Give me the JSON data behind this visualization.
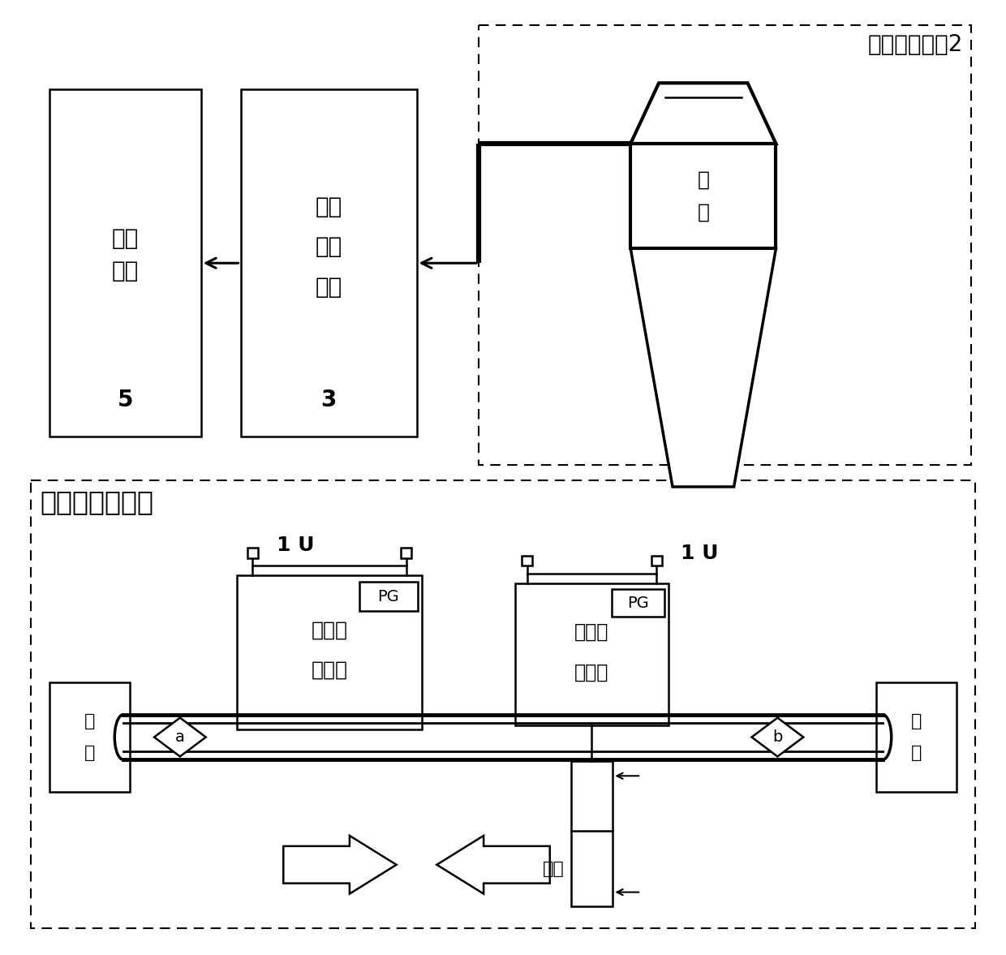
{
  "bg": "#ffffff",
  "fig_w": 12.4,
  "fig_h": 11.77,
  "img_module_label": "图像采集模块2",
  "mot_module_label": "运动控制模块１",
  "client_l1": "客户",
  "client_l2": "终端",
  "client_num": "5",
  "defect_l1": "缺陷",
  "defect_l2": "检测",
  "defect_l3": "模块",
  "defect_num": "3",
  "camera_label": "相机",
  "one_u": "1 U",
  "pg": "PG",
  "motor_l1": "电",
  "motor_l2": "机",
  "mech2_l1": "第二活",
  "mech2_l2": "动机构",
  "mech1_l1": "第一活",
  "mech1_l2": "动机构",
  "cylinder_label": "气缸"
}
